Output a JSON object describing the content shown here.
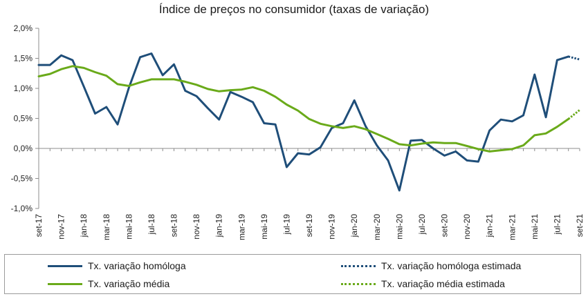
{
  "chart_data": {
    "type": "line",
    "title": "Índice de preços no consumidor  (taxas  de variação)",
    "xlabel": "",
    "ylabel": "",
    "ylim": [
      -1.0,
      2.0
    ],
    "yticks": [
      2.0,
      1.5,
      1.0,
      0.5,
      0.0,
      -0.5,
      -1.0
    ],
    "ytick_labels": [
      "2,0%",
      "1,5%",
      "1,0%",
      "0,5%",
      "0,0%",
      "-0,5%",
      "-1,0%"
    ],
    "x": [
      "set-17",
      "out-17",
      "nov-17",
      "dez-17",
      "jan-18",
      "fev-18",
      "mar-18",
      "abr-18",
      "mai-18",
      "jun-18",
      "jul-18",
      "ago-18",
      "set-18",
      "out-18",
      "nov-18",
      "dez-18",
      "jan-19",
      "fev-19",
      "mar-19",
      "abr-19",
      "mai-19",
      "jun-19",
      "jul-19",
      "ago-19",
      "set-19",
      "out-19",
      "nov-19",
      "dez-19",
      "jan-20",
      "fev-20",
      "mar-20",
      "abr-20",
      "mai-20",
      "jun-20",
      "jul-20",
      "ago-20",
      "set-20",
      "out-20",
      "nov-20",
      "dez-20",
      "jan-21",
      "fev-21",
      "mar-21",
      "abr-21",
      "mai-21",
      "jun-21",
      "jul-21",
      "ago-21",
      "set-21"
    ],
    "tick_labels": [
      "set-17",
      "nov-17",
      "jan-18",
      "mar-18",
      "mai-18",
      "jul-18",
      "set-18",
      "nov-18",
      "jan-19",
      "mar-19",
      "mai-19",
      "jul-19",
      "set-19",
      "nov-19",
      "jan-20",
      "mar-20",
      "mai-20",
      "jul-20",
      "set-20",
      "nov-20",
      "jan-21",
      "mar-21",
      "mai-21",
      "jul-21",
      "set-21"
    ],
    "series": [
      {
        "name": "Tx. variação homóloga",
        "color": "#1f4e79",
        "style": "solid",
        "values": [
          1.39,
          1.39,
          1.55,
          1.47,
          1.03,
          0.58,
          0.69,
          0.4,
          1.01,
          1.52,
          1.58,
          1.22,
          1.4,
          0.96,
          0.87,
          0.67,
          0.48,
          0.94,
          0.86,
          0.77,
          0.42,
          0.4,
          -0.31,
          -0.08,
          -0.1,
          0.02,
          0.34,
          0.42,
          0.8,
          0.37,
          0.05,
          -0.2,
          -0.7,
          0.13,
          0.14,
          0.0,
          -0.12,
          -0.05,
          -0.2,
          -0.22,
          0.3,
          0.48,
          0.45,
          0.55,
          1.23,
          0.52,
          1.47,
          1.53,
          null
        ]
      },
      {
        "name": "Tx. variação homóloga estimada",
        "color": "#1f4e79",
        "style": "dotted",
        "values": [
          null,
          null,
          null,
          null,
          null,
          null,
          null,
          null,
          null,
          null,
          null,
          null,
          null,
          null,
          null,
          null,
          null,
          null,
          null,
          null,
          null,
          null,
          null,
          null,
          null,
          null,
          null,
          null,
          null,
          null,
          null,
          null,
          null,
          null,
          null,
          null,
          null,
          null,
          null,
          null,
          null,
          null,
          null,
          null,
          null,
          null,
          null,
          1.53,
          1.48
        ]
      },
      {
        "name": "Tx. variação média",
        "color": "#6aaa1a",
        "style": "solid",
        "values": [
          1.2,
          1.24,
          1.32,
          1.37,
          1.34,
          1.27,
          1.21,
          1.07,
          1.04,
          1.1,
          1.15,
          1.15,
          1.15,
          1.11,
          1.06,
          0.99,
          0.95,
          0.97,
          0.98,
          1.02,
          0.96,
          0.86,
          0.73,
          0.63,
          0.49,
          0.41,
          0.37,
          0.34,
          0.37,
          0.32,
          0.24,
          0.16,
          0.07,
          0.05,
          0.08,
          0.1,
          0.09,
          0.09,
          0.04,
          -0.01,
          -0.05,
          -0.03,
          -0.01,
          0.05,
          0.22,
          0.25,
          0.36,
          0.49,
          null
        ]
      },
      {
        "name": "Tx. variação média  estimada",
        "color": "#6aaa1a",
        "style": "dotted",
        "values": [
          null,
          null,
          null,
          null,
          null,
          null,
          null,
          null,
          null,
          null,
          null,
          null,
          null,
          null,
          null,
          null,
          null,
          null,
          null,
          null,
          null,
          null,
          null,
          null,
          null,
          null,
          null,
          null,
          null,
          null,
          null,
          null,
          null,
          null,
          null,
          null,
          null,
          null,
          null,
          null,
          null,
          null,
          null,
          null,
          null,
          null,
          null,
          0.49,
          0.64
        ]
      }
    ],
    "legend_position": "bottom",
    "grid": false
  }
}
